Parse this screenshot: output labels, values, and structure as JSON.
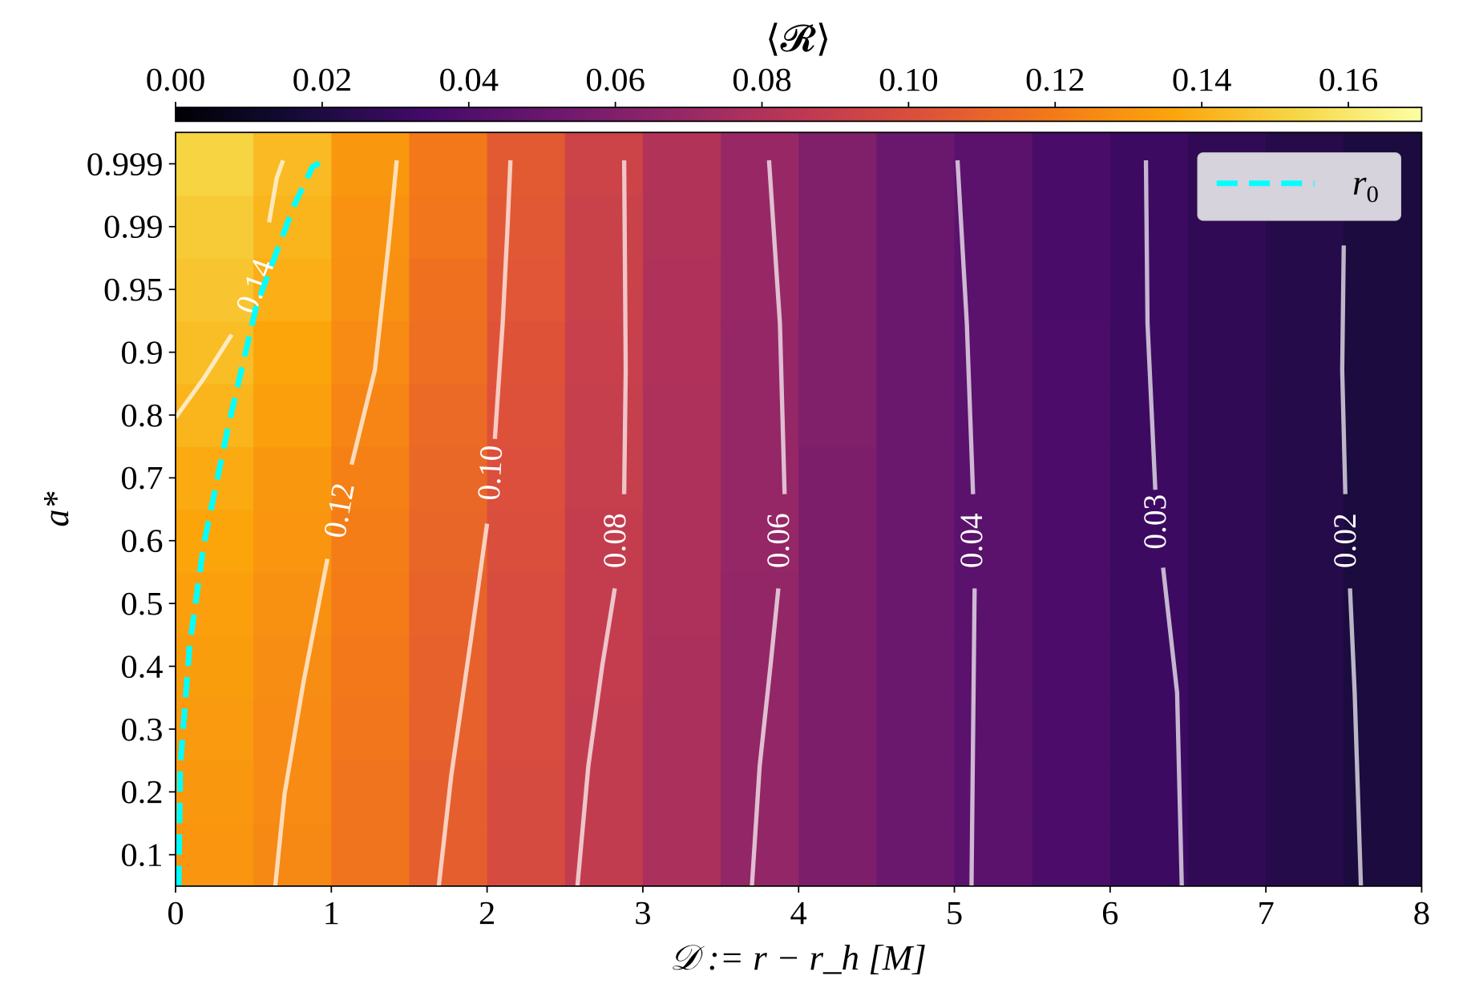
{
  "chart_data": {
    "type": "heatmap",
    "colormap": "inferno",
    "colorbar": {
      "label": "⟨𝓡⟩",
      "range": [
        0,
        0.17
      ],
      "ticks": [
        "0.00",
        "0.02",
        "0.04",
        "0.06",
        "0.08",
        "0.10",
        "0.12",
        "0.14",
        "0.16"
      ],
      "placement": "top"
    },
    "xlabel": "𝒟 := r − r_h [M]",
    "ylabel": "a*",
    "xlim": [
      0,
      8
    ],
    "x_ticks": [
      "0",
      "1",
      "2",
      "3",
      "4",
      "5",
      "6",
      "7",
      "8"
    ],
    "x_bin_edges_step": 0.5,
    "y_categories": [
      "0.1",
      "0.2",
      "0.3",
      "0.4",
      "0.5",
      "0.6",
      "0.7",
      "0.8",
      "0.9",
      "0.95",
      "0.99",
      "0.999"
    ],
    "values": [
      [
        0.13,
        0.125,
        0.117,
        0.108,
        0.098,
        0.088,
        0.078,
        0.068,
        0.059,
        0.051,
        0.044,
        0.038,
        0.032,
        0.027,
        0.023,
        0.019
      ],
      [
        0.131,
        0.126,
        0.117,
        0.108,
        0.098,
        0.088,
        0.078,
        0.068,
        0.059,
        0.051,
        0.044,
        0.038,
        0.032,
        0.027,
        0.023,
        0.019
      ],
      [
        0.132,
        0.126,
        0.118,
        0.109,
        0.099,
        0.088,
        0.078,
        0.068,
        0.059,
        0.051,
        0.044,
        0.038,
        0.032,
        0.027,
        0.023,
        0.019
      ],
      [
        0.133,
        0.127,
        0.119,
        0.109,
        0.099,
        0.089,
        0.078,
        0.068,
        0.059,
        0.051,
        0.044,
        0.038,
        0.032,
        0.027,
        0.023,
        0.019
      ],
      [
        0.134,
        0.128,
        0.12,
        0.11,
        0.099,
        0.089,
        0.079,
        0.068,
        0.059,
        0.051,
        0.044,
        0.038,
        0.032,
        0.027,
        0.023,
        0.019
      ],
      [
        0.136,
        0.13,
        0.121,
        0.111,
        0.1,
        0.089,
        0.079,
        0.069,
        0.059,
        0.051,
        0.044,
        0.038,
        0.032,
        0.027,
        0.023,
        0.019
      ],
      [
        0.138,
        0.131,
        0.122,
        0.112,
        0.101,
        0.09,
        0.079,
        0.069,
        0.059,
        0.051,
        0.044,
        0.038,
        0.032,
        0.027,
        0.023,
        0.019
      ],
      [
        0.141,
        0.134,
        0.124,
        0.113,
        0.102,
        0.09,
        0.079,
        0.069,
        0.06,
        0.051,
        0.044,
        0.038,
        0.032,
        0.027,
        0.023,
        0.019
      ],
      [
        0.144,
        0.136,
        0.126,
        0.115,
        0.103,
        0.091,
        0.08,
        0.069,
        0.06,
        0.051,
        0.044,
        0.038,
        0.032,
        0.027,
        0.023,
        0.019
      ],
      [
        0.147,
        0.139,
        0.128,
        0.116,
        0.104,
        0.092,
        0.08,
        0.07,
        0.06,
        0.051,
        0.044,
        0.037,
        0.032,
        0.027,
        0.023,
        0.019
      ],
      [
        0.149,
        0.141,
        0.129,
        0.118,
        0.105,
        0.092,
        0.081,
        0.07,
        0.06,
        0.051,
        0.044,
        0.037,
        0.032,
        0.027,
        0.023,
        0.019
      ],
      [
        0.152,
        0.143,
        0.131,
        0.119,
        0.106,
        0.093,
        0.081,
        0.07,
        0.06,
        0.051,
        0.044,
        0.037,
        0.032,
        0.027,
        0.023,
        0.019
      ]
    ],
    "contours": [
      {
        "level": "0.14",
        "label_at": [
          0.51,
          0.952
        ],
        "segments": [
          [
            [
              0,
              0.796
            ],
            [
              0.18,
              0.858
            ],
            [
              0.36,
              0.914
            ]
          ],
          [
            [
              0.6,
              0.9906
            ],
            [
              0.65,
              0.997
            ],
            [
              0.69,
              0.9995
            ]
          ]
        ]
      },
      {
        "level": "0.12",
        "label_at": [
          1.05,
          0.648
        ],
        "segments": [
          [
            [
              0.64,
              0.05
            ],
            [
              0.7,
              0.197
            ],
            [
              0.82,
              0.373
            ],
            [
              0.975,
              0.571
            ]
          ],
          [
            [
              1.13,
              0.721
            ],
            [
              1.28,
              0.872
            ],
            [
              1.37,
              0.981
            ],
            [
              1.42,
              0.9995
            ]
          ]
        ]
      },
      {
        "level": "0.10",
        "label_at": [
          2.02,
          0.708
        ],
        "segments": [
          [
            [
              1.69,
              0.05
            ],
            [
              1.77,
              0.226
            ],
            [
              1.89,
              0.432
            ],
            [
              2.0,
              0.627
            ]
          ],
          [
            [
              2.05,
              0.762
            ],
            [
              2.1,
              0.923
            ],
            [
              2.13,
              0.987
            ],
            [
              2.15,
              0.9995
            ]
          ]
        ]
      },
      {
        "level": "0.08",
        "label_at": [
          2.82,
          0.6
        ],
        "segments": [
          [
            [
              2.58,
              0.05
            ],
            [
              2.65,
              0.241
            ],
            [
              2.74,
              0.402
            ],
            [
              2.82,
              0.524
            ]
          ],
          [
            [
              2.88,
              0.674
            ],
            [
              2.89,
              0.872
            ],
            [
              2.88,
              0.9995
            ]
          ]
        ]
      },
      {
        "level": "0.06",
        "label_at": [
          3.87,
          0.6
        ],
        "segments": [
          [
            [
              3.7,
              0.05
            ],
            [
              3.75,
              0.241
            ],
            [
              3.82,
              0.402
            ],
            [
              3.87,
              0.524
            ]
          ],
          [
            [
              3.91,
              0.674
            ],
            [
              3.88,
              0.923
            ],
            [
              3.81,
              0.9995
            ]
          ]
        ]
      },
      {
        "level": "0.04",
        "label_at": [
          5.11,
          0.6
        ],
        "segments": [
          [
            [
              5.11,
              0.05
            ],
            [
              5.13,
              0.524
            ]
          ],
          [
            [
              5.12,
              0.674
            ],
            [
              5.08,
              0.923
            ],
            [
              5.02,
              0.9995
            ]
          ]
        ]
      },
      {
        "level": "0.03",
        "label_at": [
          6.29,
          0.63
        ],
        "segments": [
          [
            [
              6.46,
              0.05
            ],
            [
              6.43,
              0.358
            ],
            [
              6.34,
              0.557
            ]
          ],
          [
            [
              6.29,
              0.681
            ],
            [
              6.24,
              0.923
            ],
            [
              6.23,
              0.9995
            ]
          ]
        ]
      },
      {
        "level": "0.02",
        "label_at": [
          7.51,
          0.6
        ],
        "segments": [
          [
            [
              7.61,
              0.05
            ],
            [
              7.57,
              0.358
            ],
            [
              7.54,
              0.524
            ]
          ],
          [
            [
              7.51,
              0.674
            ],
            [
              7.49,
              0.872
            ],
            [
              7.5,
              0.978
            ]
          ]
        ]
      }
    ],
    "contour_color": "#ffffff",
    "r0_curve": {
      "name": "r_0",
      "color": "#00ffff",
      "style": "dashed",
      "points": [
        [
          0.02,
          0.05
        ],
        [
          0.03,
          0.241
        ],
        [
          0.09,
          0.432
        ],
        [
          0.18,
          0.593
        ],
        [
          0.34,
          0.784
        ],
        [
          0.52,
          0.9375
        ],
        [
          0.76,
          0.993
        ],
        [
          0.88,
          0.9986
        ],
        [
          0.96,
          0.9995
        ]
      ]
    },
    "legend": {
      "placement": "top-right",
      "entries": [
        {
          "label": "r",
          "sub": "0"
        }
      ]
    }
  }
}
